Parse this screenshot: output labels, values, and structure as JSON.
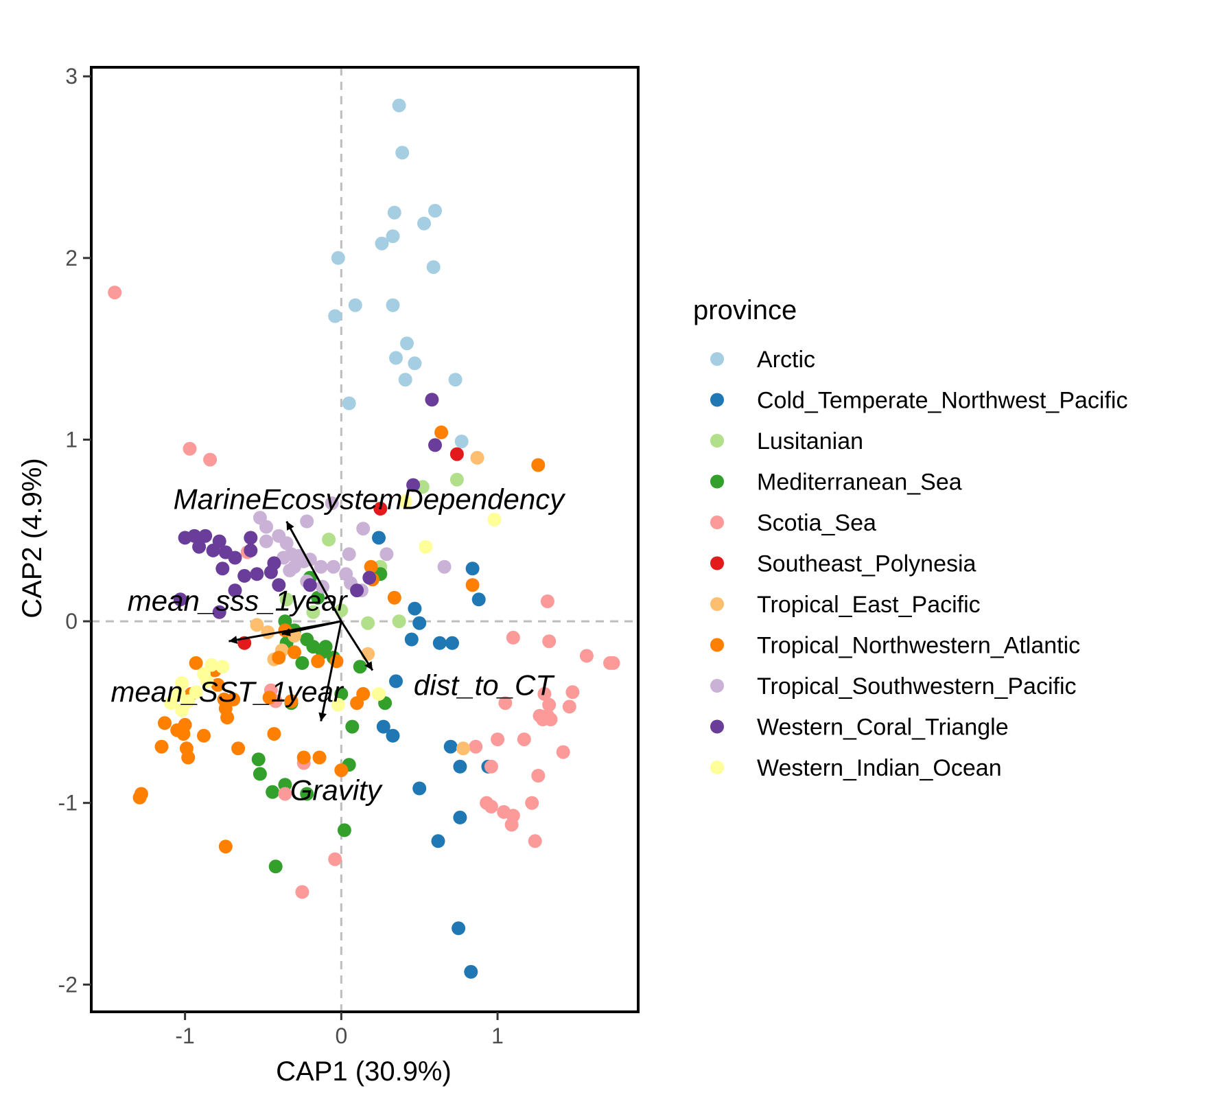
{
  "chart_data": {
    "type": "scatter",
    "xlabel": "CAP1 (30.9%)",
    "ylabel": "CAP2 (4.9%)",
    "xlim": [
      -1.6,
      1.9
    ],
    "ylim": [
      -2.15,
      3.05
    ],
    "x_ticks": [
      -1,
      0,
      1
    ],
    "y_ticks": [
      -2,
      -1,
      0,
      1,
      2,
      3
    ],
    "grid": false,
    "reference_lines": "dashed at x = 0 and y = 0",
    "legend": {
      "title": "province",
      "position": "right"
    },
    "series": [
      {
        "name": "Arctic",
        "color": "#A6CEE3",
        "points": [
          [
            0.37,
            2.84
          ],
          [
            0.39,
            2.58
          ],
          [
            0.34,
            2.25
          ],
          [
            0.6,
            2.26
          ],
          [
            0.53,
            2.19
          ],
          [
            0.33,
            2.12
          ],
          [
            0.26,
            2.08
          ],
          [
            0.59,
            1.95
          ],
          [
            -0.02,
            2.0
          ],
          [
            0.09,
            1.74
          ],
          [
            -0.04,
            1.68
          ],
          [
            0.33,
            1.74
          ],
          [
            0.42,
            1.53
          ],
          [
            0.35,
            1.45
          ],
          [
            0.47,
            1.42
          ],
          [
            0.41,
            1.33
          ],
          [
            0.73,
            1.33
          ],
          [
            0.05,
            1.2
          ],
          [
            0.77,
            0.99
          ]
        ]
      },
      {
        "name": "Cold_Temperate_Northwest_Pacific",
        "color": "#1F78B4",
        "points": [
          [
            0.24,
            0.46
          ],
          [
            0.84,
            0.29
          ],
          [
            0.88,
            0.12
          ],
          [
            0.47,
            0.07
          ],
          [
            0.5,
            -0.01
          ],
          [
            0.45,
            -0.1
          ],
          [
            0.63,
            -0.12
          ],
          [
            0.71,
            -0.12
          ],
          [
            0.35,
            -0.33
          ],
          [
            0.27,
            -0.58
          ],
          [
            0.33,
            -0.63
          ],
          [
            0.7,
            -0.69
          ],
          [
            0.76,
            -0.8
          ],
          [
            0.94,
            -0.8
          ],
          [
            0.5,
            -0.92
          ],
          [
            0.76,
            -1.08
          ],
          [
            0.62,
            -1.21
          ],
          [
            0.75,
            -1.69
          ],
          [
            0.83,
            -1.93
          ]
        ]
      },
      {
        "name": "Lusitanian",
        "color": "#B2DF8A",
        "points": [
          [
            0.52,
            0.74
          ],
          [
            0.74,
            0.78
          ],
          [
            -0.08,
            0.45
          ],
          [
            0.25,
            0.3
          ],
          [
            -0.35,
            0.12
          ],
          [
            0.17,
            -0.01
          ],
          [
            0.37,
            0.0
          ],
          [
            -0.18,
            0.05
          ],
          [
            0.0,
            0.06
          ]
        ]
      },
      {
        "name": "Mediterranean_Sea",
        "color": "#33A02C",
        "points": [
          [
            -0.2,
            0.24
          ],
          [
            -0.15,
            0.13
          ],
          [
            0.2,
            0.26
          ],
          [
            0.25,
            0.26
          ],
          [
            -0.36,
            0.0
          ],
          [
            -0.3,
            -0.05
          ],
          [
            -0.22,
            -0.1
          ],
          [
            -0.18,
            -0.14
          ],
          [
            -0.1,
            -0.14
          ],
          [
            -0.35,
            -0.12
          ],
          [
            -0.25,
            -0.23
          ],
          [
            -0.12,
            -0.17
          ],
          [
            -0.05,
            -0.2
          ],
          [
            0.12,
            -0.25
          ],
          [
            0.28,
            -0.45
          ],
          [
            -0.32,
            -0.45
          ],
          [
            0.0,
            -0.4
          ],
          [
            0.07,
            -0.58
          ],
          [
            -0.53,
            -0.76
          ],
          [
            -0.52,
            -0.84
          ],
          [
            0.05,
            -0.79
          ],
          [
            -0.36,
            -0.9
          ],
          [
            -0.44,
            -0.94
          ],
          [
            -0.22,
            -0.95
          ],
          [
            0.02,
            -1.15
          ],
          [
            -0.42,
            -1.35
          ]
        ]
      },
      {
        "name": "Scotia_Sea",
        "color": "#FB9A99",
        "points": [
          [
            -1.45,
            1.81
          ],
          [
            -0.97,
            0.95
          ],
          [
            -0.84,
            0.89
          ],
          [
            -0.6,
            0.38
          ],
          [
            -0.45,
            -0.38
          ],
          [
            -0.42,
            -0.44
          ],
          [
            -0.36,
            -0.95
          ],
          [
            -0.24,
            -0.78
          ],
          [
            -0.04,
            -1.31
          ],
          [
            -0.25,
            -1.49
          ],
          [
            1.32,
            0.11
          ],
          [
            1.1,
            -0.09
          ],
          [
            1.33,
            -0.11
          ],
          [
            1.57,
            -0.19
          ],
          [
            1.72,
            -0.23
          ],
          [
            1.74,
            -0.23
          ],
          [
            1.48,
            -0.39
          ],
          [
            1.3,
            -0.4
          ],
          [
            1.33,
            -0.46
          ],
          [
            1.46,
            -0.47
          ],
          [
            1.27,
            -0.52
          ],
          [
            1.32,
            -0.52
          ],
          [
            1.29,
            -0.54
          ],
          [
            1.34,
            -0.54
          ],
          [
            1.05,
            -0.45
          ],
          [
            1.0,
            -0.65
          ],
          [
            1.17,
            -0.65
          ],
          [
            1.42,
            -0.72
          ],
          [
            0.86,
            -0.69
          ],
          [
            0.96,
            -0.8
          ],
          [
            1.26,
            -0.85
          ],
          [
            0.93,
            -1.0
          ],
          [
            0.96,
            -1.02
          ],
          [
            1.04,
            -1.05
          ],
          [
            1.1,
            -1.07
          ],
          [
            1.22,
            -1.0
          ],
          [
            1.09,
            -1.12
          ],
          [
            1.24,
            -1.21
          ]
        ]
      },
      {
        "name": "Southeast_Polynesia",
        "color": "#E31A1C",
        "points": [
          [
            0.74,
            0.92
          ],
          [
            0.25,
            0.62
          ],
          [
            -0.62,
            -0.12
          ]
        ]
      },
      {
        "name": "Tropical_East_Pacific",
        "color": "#FDBF6F",
        "points": [
          [
            0.87,
            0.9
          ],
          [
            -0.54,
            -0.02
          ],
          [
            -0.47,
            -0.06
          ],
          [
            -0.3,
            -0.08
          ],
          [
            -0.38,
            -0.16
          ],
          [
            -0.43,
            -0.21
          ],
          [
            0.17,
            -0.18
          ],
          [
            0.78,
            -0.7
          ]
        ]
      },
      {
        "name": "Tropical_Northwestern_Atlantic",
        "color": "#FF7F00",
        "points": [
          [
            0.64,
            1.04
          ],
          [
            1.26,
            0.86
          ],
          [
            0.19,
            0.3
          ],
          [
            0.2,
            0.23
          ],
          [
            0.84,
            0.2
          ],
          [
            0.34,
            0.13
          ],
          [
            -0.36,
            -0.05
          ],
          [
            -0.4,
            -0.2
          ],
          [
            -0.3,
            -0.17
          ],
          [
            -0.15,
            -0.22
          ],
          [
            -0.03,
            -0.22
          ],
          [
            -0.93,
            -0.23
          ],
          [
            -0.81,
            -0.27
          ],
          [
            -0.79,
            -0.35
          ],
          [
            -0.96,
            -0.4
          ],
          [
            -0.75,
            -0.43
          ],
          [
            -0.69,
            -0.43
          ],
          [
            -0.74,
            -0.48
          ],
          [
            -0.73,
            -0.53
          ],
          [
            -0.46,
            -0.42
          ],
          [
            -0.32,
            -0.44
          ],
          [
            0.1,
            -0.45
          ],
          [
            0.14,
            -0.4
          ],
          [
            -1.13,
            -0.56
          ],
          [
            -1.0,
            -0.57
          ],
          [
            -1.05,
            -0.6
          ],
          [
            -1.01,
            -0.62
          ],
          [
            -0.88,
            -0.63
          ],
          [
            -1.15,
            -0.69
          ],
          [
            -0.99,
            -0.7
          ],
          [
            -0.66,
            -0.7
          ],
          [
            -0.98,
            -0.75
          ],
          [
            -0.43,
            -0.62
          ],
          [
            -0.24,
            -0.75
          ],
          [
            -0.14,
            -0.75
          ],
          [
            0.0,
            -0.82
          ],
          [
            -1.28,
            -0.95
          ],
          [
            -1.29,
            -0.97
          ],
          [
            -0.74,
            -1.24
          ]
        ]
      },
      {
        "name": "Tropical_Southwestern_Pacific",
        "color": "#CAB2D6",
        "points": [
          [
            -0.52,
            0.57
          ],
          [
            -0.48,
            0.52
          ],
          [
            -0.22,
            0.55
          ],
          [
            -0.06,
            0.65
          ],
          [
            -0.48,
            0.44
          ],
          [
            -0.4,
            0.47
          ],
          [
            -0.35,
            0.43
          ],
          [
            -0.32,
            0.37
          ],
          [
            -0.37,
            0.35
          ],
          [
            -0.27,
            0.36
          ],
          [
            -0.24,
            0.33
          ],
          [
            -0.3,
            0.3
          ],
          [
            -0.33,
            0.28
          ],
          [
            -0.2,
            0.34
          ],
          [
            -0.13,
            0.3
          ],
          [
            -0.05,
            0.3
          ],
          [
            0.05,
            0.37
          ],
          [
            0.03,
            0.26
          ],
          [
            0.29,
            0.37
          ],
          [
            0.66,
            0.3
          ],
          [
            -0.22,
            0.22
          ],
          [
            -0.12,
            0.19
          ],
          [
            0.06,
            0.21
          ],
          [
            0.13,
            0.17
          ],
          [
            0.14,
            0.51
          ]
        ]
      },
      {
        "name": "Western_Coral_Triangle",
        "color": "#6A3D9A",
        "points": [
          [
            0.58,
            1.22
          ],
          [
            0.6,
            0.97
          ],
          [
            0.46,
            0.75
          ],
          [
            -1.0,
            0.46
          ],
          [
            -0.94,
            0.47
          ],
          [
            -0.87,
            0.47
          ],
          [
            -0.91,
            0.41
          ],
          [
            -0.78,
            0.44
          ],
          [
            -0.74,
            0.38
          ],
          [
            -0.68,
            0.35
          ],
          [
            -0.58,
            0.46
          ],
          [
            -0.58,
            0.39
          ],
          [
            -0.82,
            0.39
          ],
          [
            -0.76,
            0.29
          ],
          [
            -0.62,
            0.25
          ],
          [
            -0.54,
            0.26
          ],
          [
            -0.45,
            0.27
          ],
          [
            -0.43,
            0.32
          ],
          [
            -0.68,
            0.17
          ],
          [
            -1.03,
            0.12
          ],
          [
            -0.4,
            0.2
          ],
          [
            -0.2,
            0.2
          ],
          [
            -0.78,
            0.05
          ],
          [
            0.18,
            0.24
          ],
          [
            0.1,
            0.17
          ]
        ]
      },
      {
        "name": "Western_Indian_Ocean",
        "color": "#FFFF99",
        "points": [
          [
            0.98,
            0.56
          ],
          [
            0.41,
            0.66
          ],
          [
            0.54,
            0.41
          ],
          [
            -0.83,
            -0.24
          ],
          [
            -0.76,
            -0.25
          ],
          [
            -0.88,
            -0.29
          ],
          [
            -0.86,
            -0.33
          ],
          [
            -1.02,
            -0.34
          ],
          [
            -1.04,
            -0.4
          ],
          [
            -0.93,
            -0.39
          ],
          [
            -0.98,
            -0.44
          ],
          [
            -1.09,
            -0.45
          ],
          [
            -1.02,
            -0.49
          ],
          [
            0.24,
            -0.4
          ],
          [
            -0.02,
            -0.46
          ]
        ]
      }
    ],
    "biplot_arrows": [
      {
        "label": "MarineEcosystemDependency",
        "end": [
          -0.35,
          0.55
        ]
      },
      {
        "label": "mean_sss_1year",
        "end": [
          -0.38,
          -0.07
        ]
      },
      {
        "label": "mean_SST_1year",
        "end": [
          -0.72,
          -0.11
        ]
      },
      {
        "label": "dist_to_CT",
        "end": [
          0.2,
          -0.27
        ]
      },
      {
        "label": "Gravity",
        "end": [
          -0.13,
          -0.55
        ]
      }
    ]
  }
}
